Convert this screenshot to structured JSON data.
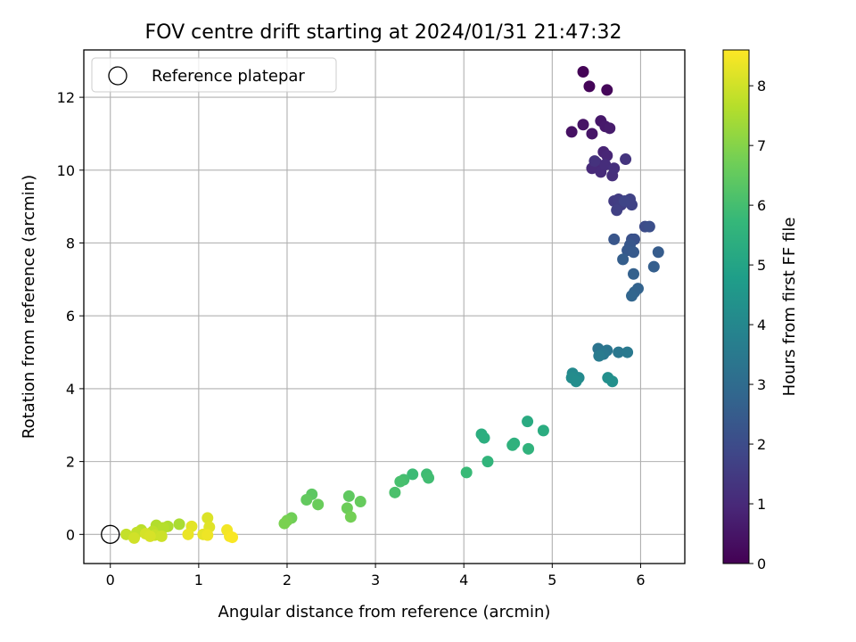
{
  "chart_data": {
    "type": "scatter",
    "title": "FOV centre drift starting at 2024/01/31 21:47:32",
    "xlabel": "Angular distance from reference (arcmin)",
    "ylabel": "Rotation from reference (arcmin)",
    "xlim": [
      -0.3,
      6.5
    ],
    "ylim": [
      -0.8,
      13.3
    ],
    "x_ticks": [
      0,
      1,
      2,
      3,
      4,
      5,
      6
    ],
    "y_ticks": [
      0,
      2,
      4,
      6,
      8,
      10,
      12
    ],
    "grid": true,
    "legend": {
      "placement": "top-left",
      "entries": [
        "Reference platepar"
      ]
    },
    "reference_point": {
      "x": 0,
      "y": 0
    },
    "colorbar": {
      "label": "Hours from first FF file",
      "range": [
        0,
        8.6
      ],
      "ticks": [
        0,
        1,
        2,
        3,
        4,
        5,
        6,
        7,
        8
      ],
      "colormap": "viridis",
      "stops": [
        "#440154",
        "#482878",
        "#3e4989",
        "#31688e",
        "#26828e",
        "#1f9e89",
        "#35b779",
        "#6ece58",
        "#b5de2b",
        "#fde725"
      ]
    },
    "series": [
      {
        "points": [
          [
            5.35,
            12.7,
            0.05
          ],
          [
            5.42,
            12.3,
            0.1
          ],
          [
            5.62,
            12.2,
            0.15
          ],
          [
            5.22,
            11.05,
            0.4
          ],
          [
            5.35,
            11.25,
            0.45
          ],
          [
            5.45,
            11.0,
            0.5
          ],
          [
            5.55,
            11.35,
            0.55
          ],
          [
            5.6,
            11.2,
            0.6
          ],
          [
            5.65,
            11.15,
            0.65
          ],
          [
            5.58,
            10.5,
            0.85
          ],
          [
            5.62,
            10.4,
            0.9
          ],
          [
            5.5,
            10.2,
            0.95
          ],
          [
            5.45,
            10.05,
            1.0
          ],
          [
            5.55,
            9.95,
            1.05
          ],
          [
            5.6,
            10.15,
            1.1
          ],
          [
            5.68,
            9.85,
            1.15
          ],
          [
            5.7,
            10.05,
            1.2
          ],
          [
            5.48,
            10.25,
            1.25
          ],
          [
            5.83,
            10.3,
            1.3
          ],
          [
            5.7,
            9.15,
            1.5
          ],
          [
            5.75,
            9.2,
            1.55
          ],
          [
            5.78,
            9.05,
            1.6
          ],
          [
            5.73,
            8.9,
            1.65
          ],
          [
            5.88,
            9.2,
            1.7
          ],
          [
            5.9,
            9.05,
            1.75
          ],
          [
            5.82,
            9.15,
            1.8
          ],
          [
            6.05,
            8.45,
            2.0
          ],
          [
            6.1,
            8.45,
            2.1
          ],
          [
            5.9,
            8.1,
            2.15
          ],
          [
            5.93,
            8.1,
            2.2
          ],
          [
            5.7,
            8.1,
            2.3
          ],
          [
            5.88,
            7.95,
            2.35
          ],
          [
            5.85,
            7.8,
            2.4
          ],
          [
            5.92,
            7.75,
            2.45
          ],
          [
            6.2,
            7.75,
            2.5
          ],
          [
            5.8,
            7.55,
            2.55
          ],
          [
            6.15,
            7.35,
            2.6
          ],
          [
            5.92,
            7.15,
            2.65
          ],
          [
            5.97,
            6.75,
            2.7
          ],
          [
            5.93,
            6.65,
            2.75
          ],
          [
            5.9,
            6.55,
            2.8
          ],
          [
            5.52,
            5.1,
            3.3
          ],
          [
            5.62,
            5.05,
            3.35
          ],
          [
            5.75,
            5.0,
            3.4
          ],
          [
            5.58,
            4.95,
            3.45
          ],
          [
            5.85,
            5.0,
            3.5
          ],
          [
            5.53,
            4.9,
            3.55
          ],
          [
            5.23,
            4.42,
            4.05
          ],
          [
            5.3,
            4.3,
            4.1
          ],
          [
            5.22,
            4.3,
            4.15
          ],
          [
            5.27,
            4.2,
            4.2
          ],
          [
            5.63,
            4.3,
            4.25
          ],
          [
            5.68,
            4.2,
            4.3
          ],
          [
            4.72,
            3.1,
            5.25
          ],
          [
            4.9,
            2.85,
            5.3
          ],
          [
            4.2,
            2.75,
            5.35
          ],
          [
            4.23,
            2.65,
            5.4
          ],
          [
            4.57,
            2.5,
            5.45
          ],
          [
            4.55,
            2.45,
            5.5
          ],
          [
            4.73,
            2.35,
            5.55
          ],
          [
            4.27,
            2.0,
            5.6
          ],
          [
            4.03,
            1.7,
            5.8
          ],
          [
            3.42,
            1.65,
            5.85
          ],
          [
            3.58,
            1.65,
            5.9
          ],
          [
            3.6,
            1.55,
            5.95
          ],
          [
            3.32,
            1.5,
            6.0
          ],
          [
            3.28,
            1.45,
            6.05
          ],
          [
            3.22,
            1.15,
            6.1
          ],
          [
            2.28,
            1.1,
            6.4
          ],
          [
            2.7,
            1.05,
            6.45
          ],
          [
            2.22,
            0.95,
            6.5
          ],
          [
            2.83,
            0.9,
            6.55
          ],
          [
            2.35,
            0.82,
            6.6
          ],
          [
            2.68,
            0.72,
            6.65
          ],
          [
            2.05,
            0.45,
            6.7
          ],
          [
            2.72,
            0.48,
            6.75
          ],
          [
            2.0,
            0.38,
            6.8
          ],
          [
            1.97,
            0.3,
            6.85
          ],
          [
            0.78,
            0.28,
            7.5
          ],
          [
            0.65,
            0.22,
            7.55
          ],
          [
            0.52,
            0.25,
            7.6
          ],
          [
            0.6,
            0.18,
            7.65
          ],
          [
            0.35,
            0.12,
            7.7
          ],
          [
            0.48,
            0.08,
            7.75
          ],
          [
            0.3,
            0.05,
            7.8
          ],
          [
            0.18,
            0.0,
            7.85
          ],
          [
            0.5,
            -0.02,
            7.9
          ],
          [
            0.58,
            -0.05,
            7.95
          ],
          [
            0.27,
            -0.1,
            8.0
          ],
          [
            0.4,
            0.02,
            8.05
          ],
          [
            0.45,
            -0.05,
            8.1
          ],
          [
            1.1,
            0.45,
            8.15
          ],
          [
            1.12,
            0.2,
            8.2
          ],
          [
            0.92,
            0.22,
            8.25
          ],
          [
            1.05,
            0.0,
            8.3
          ],
          [
            0.88,
            0.0,
            8.35
          ],
          [
            1.1,
            -0.02,
            8.4
          ],
          [
            1.32,
            0.12,
            8.45
          ],
          [
            1.35,
            -0.05,
            8.5
          ],
          [
            1.38,
            -0.08,
            8.55
          ]
        ]
      }
    ]
  }
}
